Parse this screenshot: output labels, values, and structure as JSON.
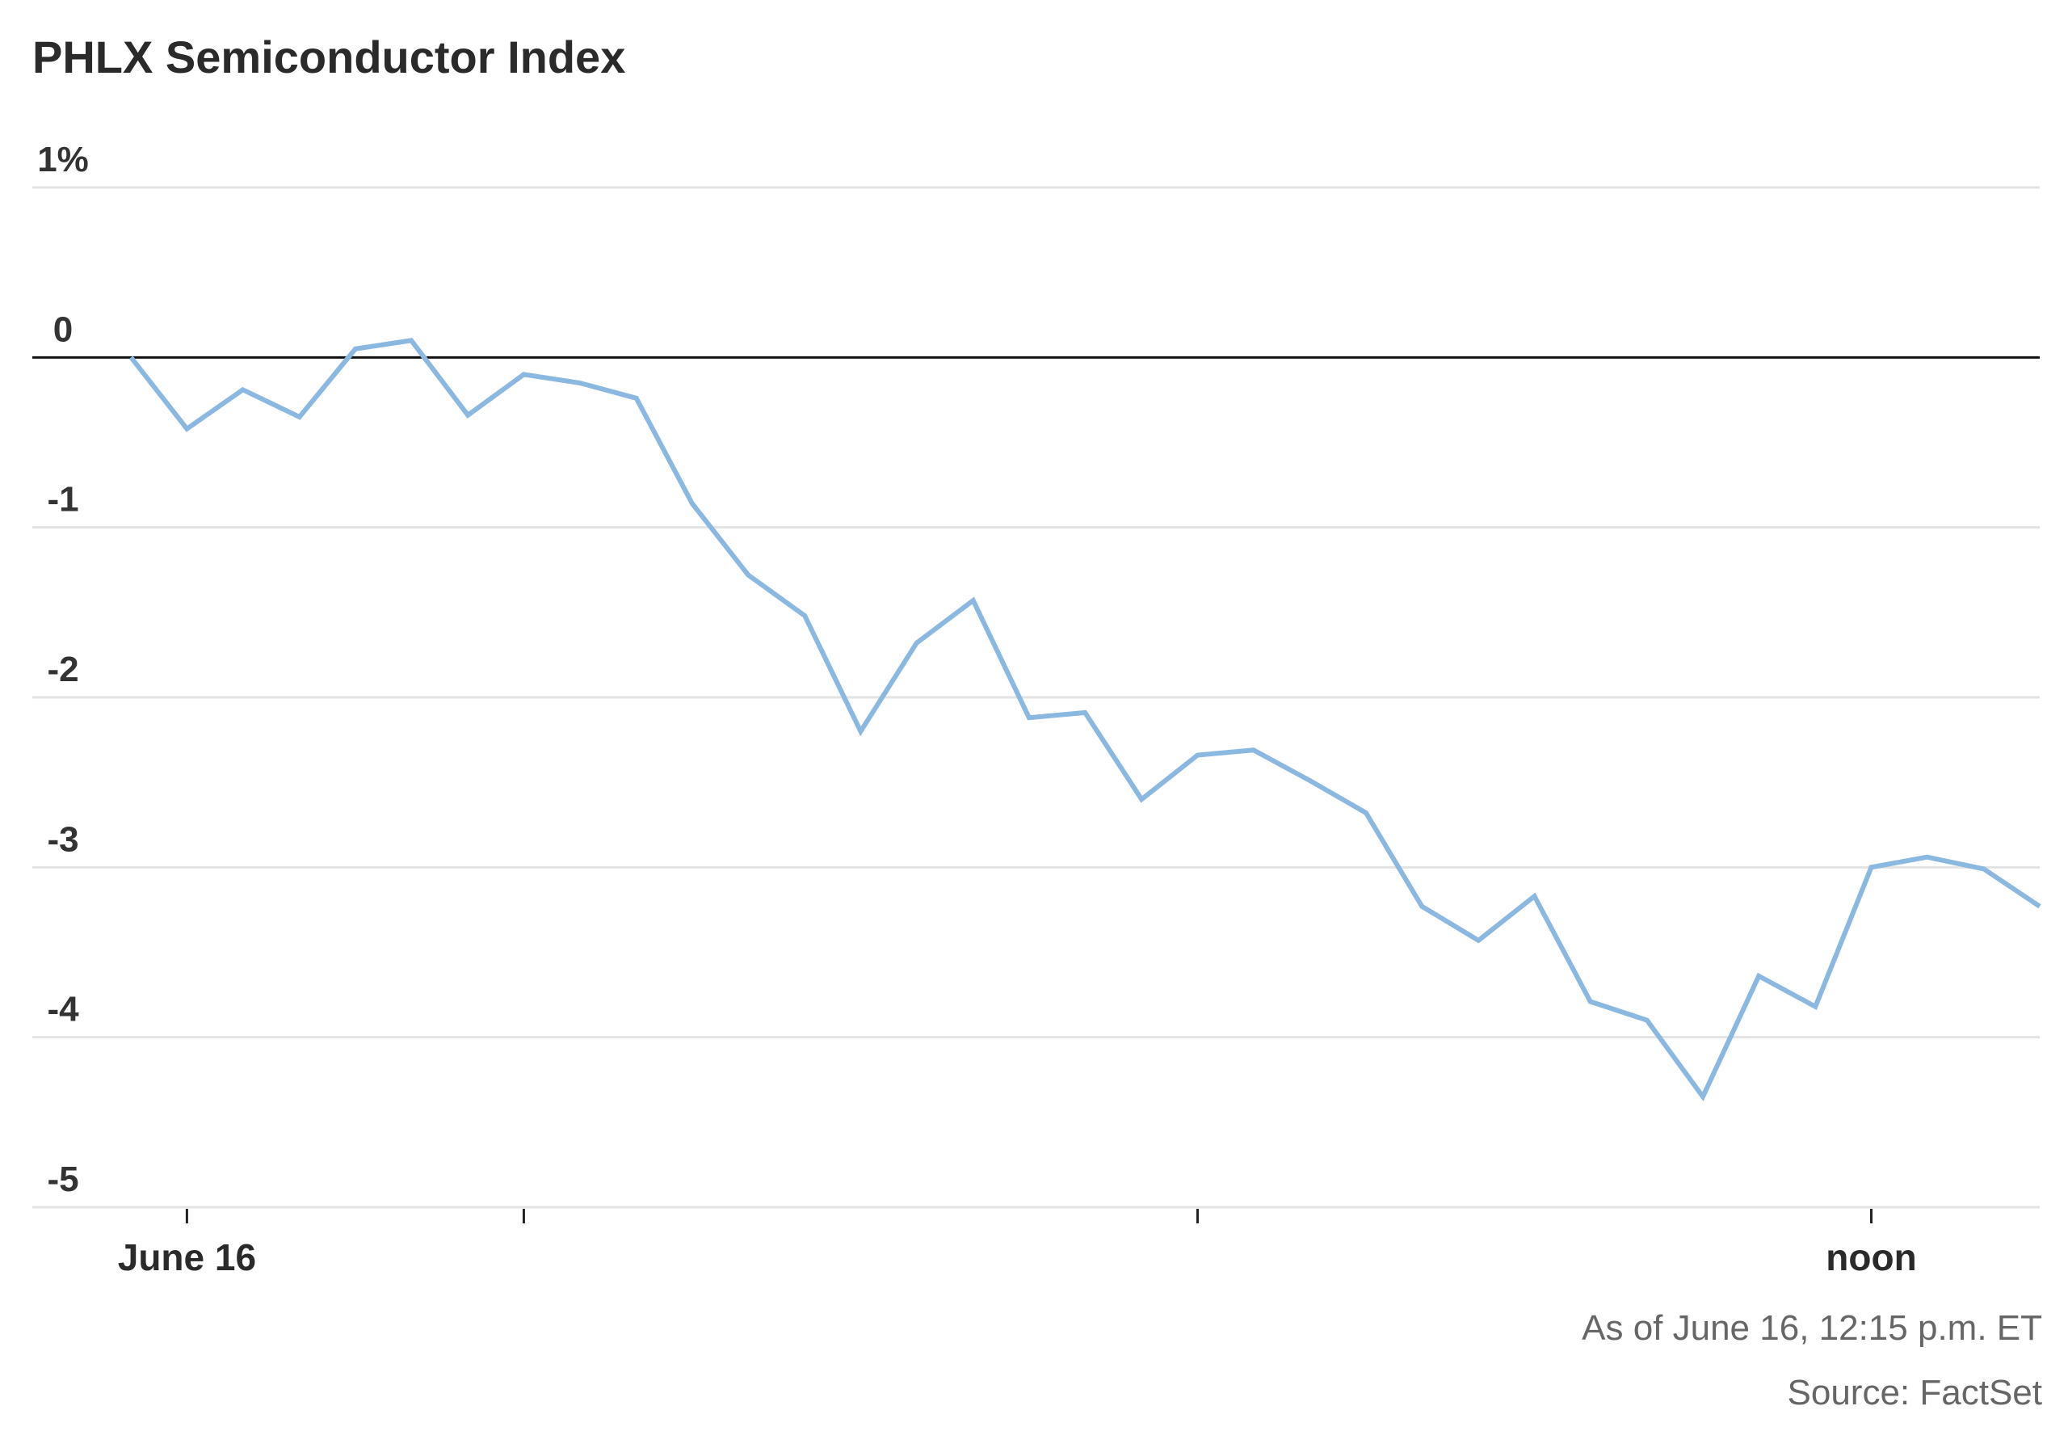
{
  "chart_data": {
    "type": "line",
    "title": "PHLX Semiconductor Index",
    "xlabel": "",
    "ylabel": "",
    "y_tick_labels": [
      "1%",
      "0",
      "-1",
      "-2",
      "-3",
      "-4",
      "-5"
    ],
    "y_ticks": [
      1,
      0,
      -1,
      -2,
      -3,
      -4,
      -5
    ],
    "ylim": [
      -5,
      1
    ],
    "zero_line": true,
    "grid": "horizontal",
    "x_tick_labels": [
      "June 16",
      "",
      "",
      "noon"
    ],
    "x_ticks_hours": [
      9.5,
      10,
      11,
      12
    ],
    "xlim_hours": [
      9.4,
      12.25
    ],
    "series": [
      {
        "color": "#8ab8e0",
        "x_hours": [
          9.417,
          9.5,
          9.583,
          9.667,
          9.75,
          9.833,
          9.917,
          10.0,
          10.083,
          10.167,
          10.25,
          10.333,
          10.417,
          10.5,
          10.583,
          10.667,
          10.75,
          10.833,
          10.917,
          11.0,
          11.083,
          11.167,
          11.25,
          11.333,
          11.417,
          11.5,
          11.583,
          11.667,
          11.75,
          11.833,
          11.917,
          12.0,
          12.083,
          12.167,
          12.25
        ],
        "values": [
          0.0,
          -0.42,
          -0.19,
          -0.35,
          0.05,
          0.1,
          -0.34,
          -0.1,
          -0.15,
          -0.24,
          -0.86,
          -1.28,
          -1.52,
          -2.2,
          -1.68,
          -1.43,
          -2.12,
          -2.09,
          -2.6,
          -2.34,
          -2.31,
          -2.49,
          -2.68,
          -3.23,
          -3.43,
          -3.17,
          -3.79,
          -3.9,
          -4.35,
          -3.64,
          -3.82,
          -3.0,
          -2.94,
          -3.01,
          -3.23
        ]
      }
    ],
    "annotations": [
      "As of June 16, 12:15 p.m. ET",
      "Source: FactSet"
    ]
  }
}
